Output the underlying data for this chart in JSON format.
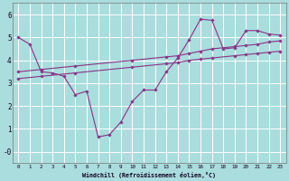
{
  "background_color": "#aadddd",
  "grid_color": "#ffffff",
  "line_color": "#883388",
  "xlabel": "Windchill (Refroidissement éolien,°C)",
  "xlim": [
    -0.5,
    23.5
  ],
  "ylim": [
    -0.5,
    6.5
  ],
  "xticks": [
    0,
    1,
    2,
    3,
    4,
    5,
    6,
    7,
    8,
    9,
    10,
    11,
    12,
    13,
    14,
    15,
    16,
    17,
    18,
    19,
    20,
    21,
    22,
    23
  ],
  "yticks": [
    0,
    1,
    2,
    3,
    4,
    5,
    6
  ],
  "ytick_labels": [
    "-0",
    "1",
    "2",
    "3",
    "4",
    "5",
    "6"
  ],
  "lines": [
    {
      "x": [
        0,
        1,
        2,
        3,
        4,
        5,
        6,
        7,
        8,
        9,
        10,
        11,
        12,
        13,
        14,
        15,
        16,
        17,
        18,
        19,
        20,
        21,
        22,
        23
      ],
      "y": [
        5.0,
        4.7,
        3.5,
        3.45,
        3.3,
        2.5,
        2.65,
        0.65,
        0.75,
        1.3,
        2.2,
        2.7,
        2.7,
        3.5,
        4.1,
        4.9,
        5.8,
        5.75,
        4.5,
        4.55,
        5.3,
        5.3,
        5.15,
        5.1
      ]
    },
    {
      "x": [
        0,
        2,
        5,
        10,
        13,
        14,
        15,
        16,
        17,
        19,
        20,
        21,
        22,
        23
      ],
      "y": [
        3.5,
        3.6,
        3.75,
        4.0,
        4.15,
        4.2,
        4.3,
        4.4,
        4.5,
        4.6,
        4.65,
        4.7,
        4.8,
        4.85
      ]
    },
    {
      "x": [
        0,
        2,
        5,
        10,
        13,
        14,
        15,
        16,
        17,
        19,
        20,
        21,
        22,
        23
      ],
      "y": [
        3.2,
        3.3,
        3.45,
        3.7,
        3.85,
        3.9,
        4.0,
        4.05,
        4.1,
        4.2,
        4.25,
        4.3,
        4.35,
        4.4
      ]
    }
  ]
}
